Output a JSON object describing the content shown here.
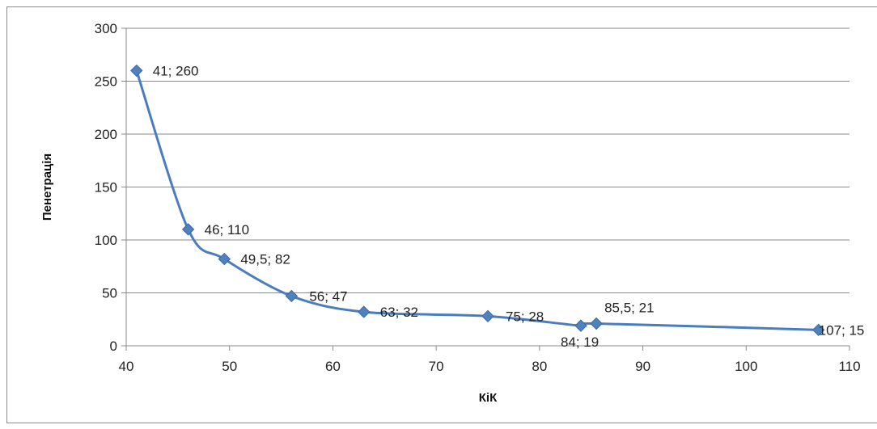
{
  "chart_data": {
    "type": "line",
    "title": "",
    "xlabel": "КіК",
    "ylabel": "Пенетрація",
    "xlim": [
      40,
      110
    ],
    "ylim": [
      0,
      300
    ],
    "x_ticks": [
      40,
      50,
      60,
      70,
      80,
      90,
      100,
      110
    ],
    "y_ticks": [
      0,
      50,
      100,
      150,
      200,
      250,
      300
    ],
    "grid": "horizontal",
    "legend": "none",
    "line_color": "#4a7dbf",
    "marker_color": "#4f81bd",
    "series": [
      {
        "x": [
          41,
          46,
          49.5,
          56,
          63,
          75,
          84,
          85.5,
          107
        ],
        "y": [
          260,
          110,
          82,
          47,
          32,
          28,
          19,
          21,
          15
        ],
        "labels": [
          "41; 260",
          "46; 110",
          "49,5; 82",
          "56; 47",
          "63; 32",
          "75; 28",
          "84; 19",
          "85,5; 21",
          "107; 15"
        ]
      }
    ]
  }
}
